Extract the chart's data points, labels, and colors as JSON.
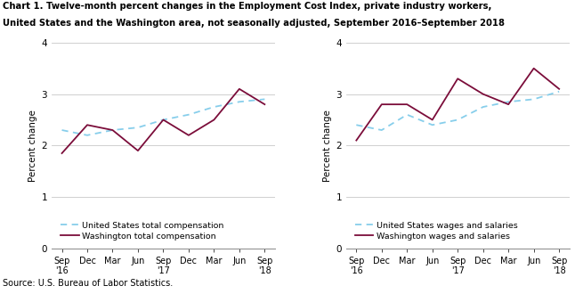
{
  "title_line1": "Chart 1. Twelve-month percent changes in the Employment Cost Index, private industry workers,",
  "title_line2": "United States and the Washington area, not seasonally adjusted, September 2016–September 2018",
  "x_labels": [
    "Sep\n'16",
    "Dec",
    "Mar",
    "Jun",
    "Sep\n'17",
    "Dec",
    "Mar",
    "Jun",
    "Sep\n'18"
  ],
  "ylabel": "Percent change",
  "ylim": [
    0.0,
    4.0
  ],
  "yticks": [
    0.0,
    1.0,
    2.0,
    3.0,
    4.0
  ],
  "source": "Source: U.S. Bureau of Labor Statistics.",
  "left_chart": {
    "us_total_comp": [
      2.3,
      2.2,
      2.3,
      2.35,
      2.5,
      2.6,
      2.75,
      2.85,
      2.9
    ],
    "wash_total_comp": [
      1.85,
      2.4,
      2.3,
      1.9,
      2.5,
      2.2,
      2.5,
      3.1,
      2.8
    ],
    "legend1": "United States total compensation",
    "legend2": "Washington total compensation"
  },
  "right_chart": {
    "us_wages_sal": [
      2.4,
      2.3,
      2.6,
      2.4,
      2.5,
      2.75,
      2.85,
      2.9,
      3.05
    ],
    "wash_wages_sal": [
      2.1,
      2.8,
      2.8,
      2.5,
      3.3,
      3.0,
      2.8,
      3.5,
      3.1
    ],
    "legend1": "United States wages and salaries",
    "legend2": "Washington wages and salaries"
  },
  "us_color": "#87CEEB",
  "wash_color": "#7B0D3A",
  "grid_color": "#C8C8C8",
  "background_color": "#FFFFFF"
}
